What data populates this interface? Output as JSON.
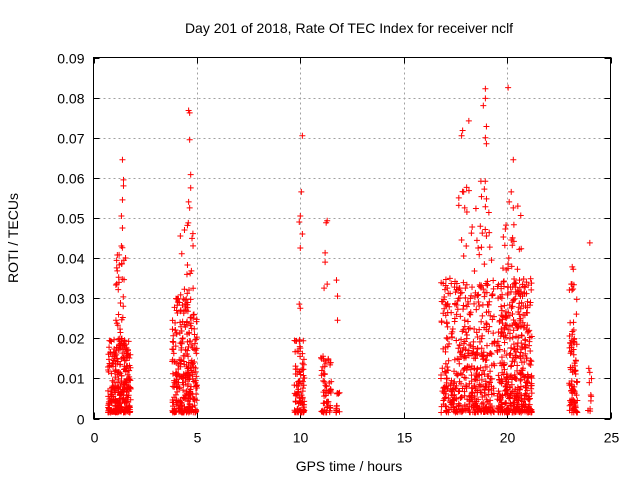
{
  "chart_data": {
    "type": "scatter",
    "title": "Day 201 of 2018, Rate Of TEC Index for receiver nclf",
    "xlabel": "GPS time / hours",
    "ylabel": "ROTI / TECUs",
    "xlim": [
      0,
      25
    ],
    "ylim": [
      0,
      0.09
    ],
    "x_ticks": [
      "0",
      "5",
      "10",
      "15",
      "20",
      "25"
    ],
    "y_ticks": [
      "0",
      "0.01",
      "0.02",
      "0.03",
      "0.04",
      "0.05",
      "0.06",
      "0.07",
      "0.08",
      "0.09"
    ],
    "grid": true,
    "marker": "+",
    "color": "#ff0000",
    "clusters": [
      {
        "x": [
          0.7,
          1.8
        ],
        "ymax": 0.02,
        "n": 260
      },
      {
        "x": [
          1.05,
          1.5
        ],
        "ymax": 0.045,
        "n": 60
      },
      {
        "x": [
          3.8,
          5.0
        ],
        "ymax": 0.03,
        "n": 260
      },
      {
        "x": [
          4.0,
          4.9
        ],
        "ymax": 0.05,
        "n": 50
      },
      {
        "x": [
          9.7,
          10.2
        ],
        "ymax": 0.02,
        "n": 90
      },
      {
        "x": [
          11.0,
          11.5
        ],
        "ymax": 0.016,
        "n": 60
      },
      {
        "x": [
          11.6,
          11.9
        ],
        "ymax": 0.008,
        "n": 12
      },
      {
        "x": [
          16.8,
          19.4
        ],
        "ymax": 0.035,
        "n": 420
      },
      {
        "x": [
          17.6,
          19.3
        ],
        "ymax": 0.06,
        "n": 80
      },
      {
        "x": [
          19.5,
          21.2
        ],
        "ymax": 0.035,
        "n": 380
      },
      {
        "x": [
          19.8,
          20.7
        ],
        "ymax": 0.055,
        "n": 60
      },
      {
        "x": [
          23.0,
          23.4
        ],
        "ymax": 0.034,
        "n": 90
      },
      {
        "x": [
          23.9,
          24.1
        ],
        "ymax": 0.013,
        "n": 8
      }
    ],
    "points": [
      {
        "x": 1.4,
        "y": 0.0645
      },
      {
        "x": 1.45,
        "y": 0.0595
      },
      {
        "x": 1.45,
        "y": 0.058
      },
      {
        "x": 1.4,
        "y": 0.0545
      },
      {
        "x": 1.35,
        "y": 0.0505
      },
      {
        "x": 1.4,
        "y": 0.0475
      },
      {
        "x": 1.35,
        "y": 0.043
      },
      {
        "x": 1.55,
        "y": 0.04
      },
      {
        "x": 4.6,
        "y": 0.0768
      },
      {
        "x": 4.65,
        "y": 0.0762
      },
      {
        "x": 4.65,
        "y": 0.0695
      },
      {
        "x": 4.7,
        "y": 0.0608
      },
      {
        "x": 4.7,
        "y": 0.0575
      },
      {
        "x": 4.6,
        "y": 0.054
      },
      {
        "x": 4.65,
        "y": 0.0525
      },
      {
        "x": 4.2,
        "y": 0.0455
      },
      {
        "x": 4.4,
        "y": 0.047
      },
      {
        "x": 10.1,
        "y": 0.0705
      },
      {
        "x": 10.05,
        "y": 0.0565
      },
      {
        "x": 10.0,
        "y": 0.0505
      },
      {
        "x": 9.95,
        "y": 0.049
      },
      {
        "x": 10.1,
        "y": 0.046
      },
      {
        "x": 10.0,
        "y": 0.0425
      },
      {
        "x": 9.95,
        "y": 0.0285
      },
      {
        "x": 10.0,
        "y": 0.0275
      },
      {
        "x": 11.3,
        "y": 0.0493
      },
      {
        "x": 11.25,
        "y": 0.0488
      },
      {
        "x": 11.2,
        "y": 0.0413
      },
      {
        "x": 11.2,
        "y": 0.039
      },
      {
        "x": 11.15,
        "y": 0.0325
      },
      {
        "x": 11.3,
        "y": 0.0335
      },
      {
        "x": 11.75,
        "y": 0.0345
      },
      {
        "x": 11.8,
        "y": 0.0305
      },
      {
        "x": 11.8,
        "y": 0.0245
      },
      {
        "x": 17.85,
        "y": 0.0718
      },
      {
        "x": 17.8,
        "y": 0.0705
      },
      {
        "x": 18.15,
        "y": 0.0742
      },
      {
        "x": 17.9,
        "y": 0.0565
      },
      {
        "x": 17.95,
        "y": 0.0525
      },
      {
        "x": 17.8,
        "y": 0.0445
      },
      {
        "x": 17.9,
        "y": 0.0405
      },
      {
        "x": 18.95,
        "y": 0.0822
      },
      {
        "x": 18.95,
        "y": 0.0798
      },
      {
        "x": 18.85,
        "y": 0.078
      },
      {
        "x": 19.0,
        "y": 0.0728
      },
      {
        "x": 18.95,
        "y": 0.07
      },
      {
        "x": 19.0,
        "y": 0.0685
      },
      {
        "x": 18.9,
        "y": 0.0572
      },
      {
        "x": 18.95,
        "y": 0.0528
      },
      {
        "x": 18.8,
        "y": 0.0462
      },
      {
        "x": 19.0,
        "y": 0.0455
      },
      {
        "x": 18.6,
        "y": 0.0425
      },
      {
        "x": 18.9,
        "y": 0.0385
      },
      {
        "x": 19.05,
        "y": 0.0342
      },
      {
        "x": 18.75,
        "y": 0.0332
      },
      {
        "x": 20.05,
        "y": 0.0825
      },
      {
        "x": 20.3,
        "y": 0.0645
      },
      {
        "x": 20.2,
        "y": 0.0565
      },
      {
        "x": 20.3,
        "y": 0.0525
      },
      {
        "x": 20.1,
        "y": 0.054
      },
      {
        "x": 19.95,
        "y": 0.0482
      },
      {
        "x": 20.2,
        "y": 0.0445
      },
      {
        "x": 20.25,
        "y": 0.0432
      },
      {
        "x": 20.05,
        "y": 0.0385
      },
      {
        "x": 19.8,
        "y": 0.0375
      },
      {
        "x": 20.5,
        "y": 0.0372
      },
      {
        "x": 20.6,
        "y": 0.0345
      },
      {
        "x": 20.65,
        "y": 0.0305
      },
      {
        "x": 20.55,
        "y": 0.0312
      },
      {
        "x": 23.15,
        "y": 0.0378
      },
      {
        "x": 23.2,
        "y": 0.0372
      },
      {
        "x": 23.1,
        "y": 0.0335
      },
      {
        "x": 24.0,
        "y": 0.0438
      },
      {
        "x": 23.95,
        "y": 0.0125
      },
      {
        "x": 24.0,
        "y": 0.0115
      }
    ]
  }
}
